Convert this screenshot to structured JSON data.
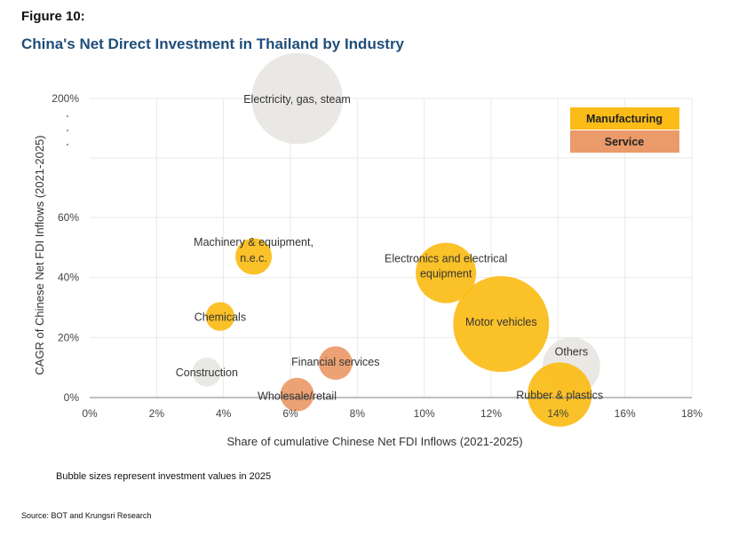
{
  "figure_label": "Figure 10:",
  "title": "China's Net Direct Investment in Thailand by Industry",
  "note": "Bubble sizes represent investment values in 2025",
  "source": "Source: BOT and Krungsri Research",
  "colors": {
    "manufacturing": "#fbbc18",
    "service": "#eb9b69",
    "other": "#e6e4df",
    "grid": "#e9e9e9",
    "axis": "#7f7f7f"
  },
  "chart_data": {
    "type": "scatter",
    "subtype": "bubble",
    "xlabel": "Share of cumulative Chinese Net FDI Inflows (2021-2025)",
    "ylabel": "CAGR of Chinese Net FDI Inflows (2021-2025)",
    "x_unit": "%",
    "y_unit": "%",
    "xlim": [
      0,
      18
    ],
    "x_ticks": [
      "0%",
      "2%",
      "4%",
      "6%",
      "8%",
      "10%",
      "12%",
      "14%",
      "16%",
      "18%"
    ],
    "y_ticks": [
      "0%",
      "20%",
      "40%",
      "60%",
      "200%"
    ],
    "y_axis_break": true,
    "grid": true,
    "legend_position": "top-right",
    "legend": [
      {
        "label": "Manufacturing",
        "color": "#fbbc18"
      },
      {
        "label": "Service",
        "color": "#eb9b69"
      }
    ],
    "bubbles": [
      {
        "label": "Electricity, gas, steam",
        "group": "other",
        "x": 6.2,
        "y": 200,
        "size": 0.95
      },
      {
        "label": "Machinery & equipment, n.e.c.",
        "group": "manufacturing",
        "x": 4.9,
        "y": 47,
        "size": 0.38
      },
      {
        "label": "Chemicals",
        "group": "manufacturing",
        "x": 3.9,
        "y": 27,
        "size": 0.3
      },
      {
        "label": "Construction",
        "group": "other",
        "x": 3.5,
        "y": 8.5,
        "size": 0.3
      },
      {
        "label": "Financial services",
        "group": "service",
        "x": 7.35,
        "y": 11.5,
        "size": 0.35
      },
      {
        "label": "Wholesale/retail",
        "group": "service",
        "x": 6.2,
        "y": 1,
        "size": 0.35
      },
      {
        "label": "Electronics and electrical equipment",
        "group": "manufacturing",
        "x": 10.65,
        "y": 41.5,
        "size": 0.63
      },
      {
        "label": "Motor vehicles",
        "group": "manufacturing",
        "x": 12.3,
        "y": 24.5,
        "size": 1.0
      },
      {
        "label": "Others",
        "group": "other",
        "x": 14.4,
        "y": 10.5,
        "size": 0.6
      },
      {
        "label": "Rubber & plastics",
        "group": "manufacturing",
        "x": 14.05,
        "y": 1,
        "size": 0.67
      }
    ]
  }
}
